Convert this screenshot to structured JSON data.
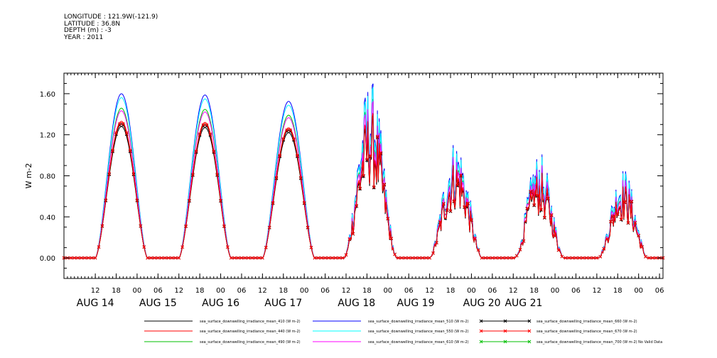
{
  "header": {
    "longitude": "LONGITUDE : 121.9W(-121.9)",
    "latitude": "LATITUDE : 36.8N",
    "depth": "DEPTH (m) : -3",
    "year": "YEAR : 2011"
  },
  "chart_data": {
    "type": "line",
    "title": "",
    "xlabel": "",
    "ylabel": "W m-2",
    "ylim": [
      -0.2,
      1.8
    ],
    "yticks": [
      0.0,
      0.4,
      0.8,
      1.2,
      1.6
    ],
    "ytick_labels": [
      "0.00",
      "0.40",
      "0.80",
      "1.20",
      "1.60"
    ],
    "x_unit": "hours since AUG 14 00:00, 2011",
    "xlim": [
      3,
      175
    ],
    "xtick_hours": [
      12,
      18,
      24,
      30,
      36,
      42,
      48,
      54,
      60,
      66,
      72,
      78,
      84,
      90,
      96,
      102,
      108,
      114,
      120,
      126,
      132,
      138,
      144,
      150,
      156,
      162,
      168,
      174
    ],
    "xtick_labels": [
      "12",
      "18",
      "00",
      "06",
      "12",
      "18",
      "00",
      "06",
      "12",
      "18",
      "00",
      "06",
      "12",
      "18",
      "00",
      "06",
      "12",
      "18",
      "00",
      "06",
      "12",
      "18",
      "00",
      "06",
      "12",
      "18",
      "00",
      "06"
    ],
    "day_labels": [
      {
        "label": "AUG 14",
        "hour": 12
      },
      {
        "label": "AUG 15",
        "hour": 30
      },
      {
        "label": "AUG 16",
        "hour": 48
      },
      {
        "label": "AUG 17",
        "hour": 66
      },
      {
        "label": "AUG 18",
        "hour": 87
      },
      {
        "label": "AUG 19",
        "hour": 104
      },
      {
        "label": "AUG 20",
        "hour": 123
      },
      {
        "label": "AUG 21",
        "hour": 135
      }
    ],
    "days": [
      {
        "center": 19.5,
        "halfwidth": 7.5,
        "peak_410": 1.28,
        "spiky": false
      },
      {
        "center": 43.5,
        "halfwidth": 7.5,
        "peak_410": 1.27,
        "spiky": false
      },
      {
        "center": 67.5,
        "halfwidth": 7.5,
        "peak_410": 1.22,
        "spiky": false
      },
      {
        "center": 91.0,
        "halfwidth": 7.5,
        "peak_410": 1.22,
        "spiky": true
      },
      {
        "center": 115.5,
        "halfwidth": 7.5,
        "peak_410": 0.82,
        "spiky": true
      },
      {
        "center": 139.5,
        "halfwidth": 7.0,
        "peak_410": 0.72,
        "spiky": true
      },
      {
        "center": 163.5,
        "halfwidth": 7.0,
        "peak_410": 0.62,
        "spiky": true
      }
    ],
    "series": [
      {
        "name": "sea_surface_downwelling_irradiance_mean_410 (W m-2)",
        "color": "#000000",
        "marker": "none",
        "scale": 1.0
      },
      {
        "name": "sea_surface_downwelling_irradiance_mean_440 (W m-2)",
        "color": "#ff0000",
        "marker": "none",
        "scale": 1.04
      },
      {
        "name": "sea_surface_downwelling_irradiance_mean_490 (W m-2)",
        "color": "#00c000",
        "marker": "none",
        "scale": 1.14
      },
      {
        "name": "sea_surface_downwelling_irradiance_mean_510 (W m-2)",
        "color": "#0000ff",
        "marker": "none",
        "scale": 1.25
      },
      {
        "name": "sea_surface_downwelling_irradiance_mean_550 (W m-2)",
        "color": "#00ffff",
        "marker": "none",
        "scale": 1.22
      },
      {
        "name": "sea_surface_downwelling_irradiance_mean_610 (W m-2)",
        "color": "#ff00ff",
        "marker": "none",
        "scale": 1.12
      },
      {
        "name": "sea_surface_downwelling_irradiance_mean_660 (W m-2)",
        "color": "#000000",
        "marker": "x",
        "scale": 1.02
      },
      {
        "name": "sea_surface_downwelling_irradiance_mean_670 (W m-2)",
        "color": "#ff0000",
        "marker": "x",
        "scale": 1.03
      },
      {
        "name": "sea_surface_downwelling_irradiance_mean_700 (W m-2) No Valid Data",
        "color": "#00c000",
        "marker": "x",
        "scale": 0,
        "no_data": true
      }
    ]
  }
}
